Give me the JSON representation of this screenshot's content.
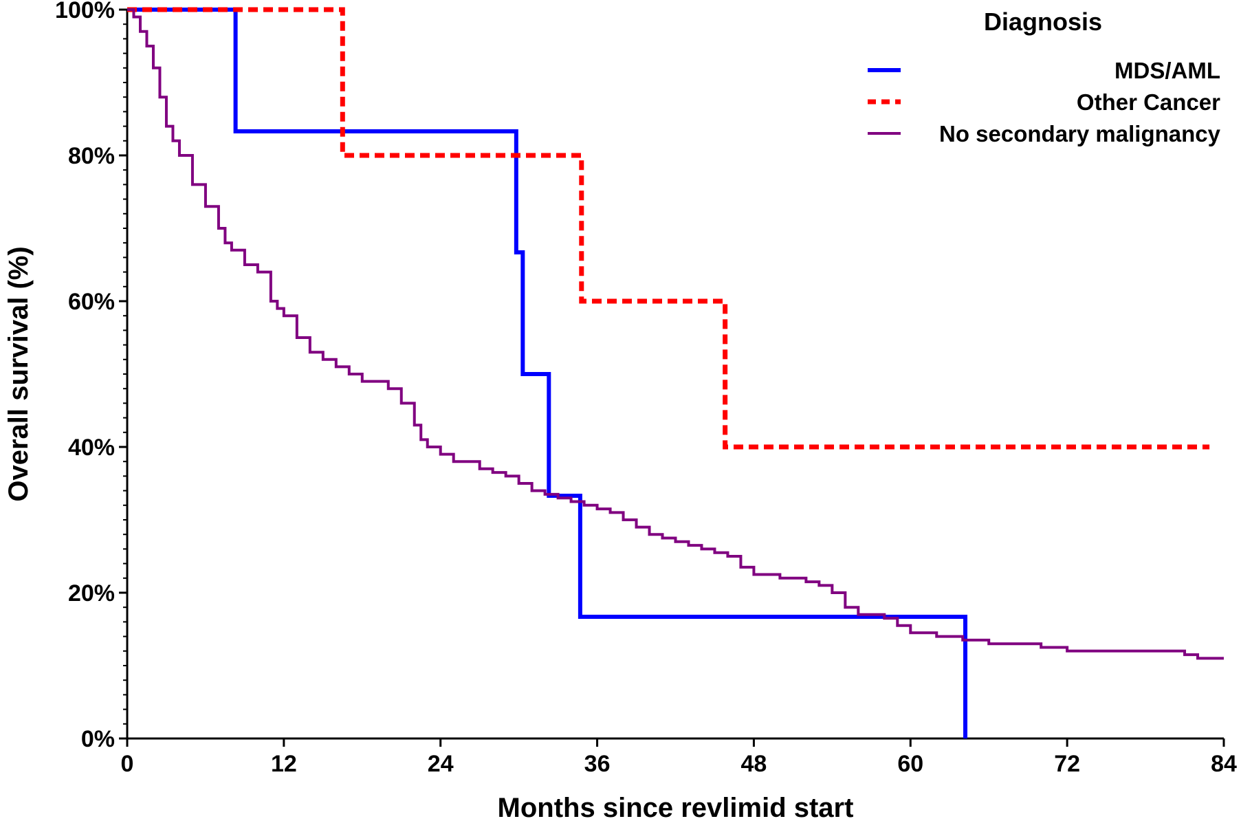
{
  "chart_data": {
    "type": "line",
    "title": "",
    "xlabel": "Months since revlimid start",
    "ylabel": "Overall survival (%)",
    "xlim": [
      0,
      84
    ],
    "ylim": [
      0,
      100
    ],
    "x_ticks": [
      0,
      12,
      24,
      36,
      48,
      60,
      72,
      84
    ],
    "y_ticks": [
      0,
      20,
      40,
      60,
      80,
      100
    ],
    "x_tick_labels": [
      "0",
      "12",
      "24",
      "36",
      "48",
      "60",
      "72",
      "84"
    ],
    "y_tick_labels": [
      "0%",
      "20%",
      "40%",
      "60%",
      "80%",
      "100%"
    ],
    "grid": false,
    "step": true,
    "legend": {
      "title": "Diagnosis",
      "position": "top-right"
    },
    "series": [
      {
        "name": "MDS/AML",
        "color": "#0000ff",
        "dash": "solid",
        "x": [
          0,
          8.3,
          29.8,
          30.3,
          32.3,
          34.7,
          64.2
        ],
        "y": [
          100,
          83.3,
          66.7,
          50,
          33.3,
          16.7,
          0
        ]
      },
      {
        "name": "Other Cancer",
        "color": "#ff0000",
        "dash": "dashed",
        "x": [
          0,
          16.5,
          34.8,
          45.8,
          82.9
        ],
        "y": [
          100,
          80,
          60,
          40,
          40
        ]
      },
      {
        "name": "No secondary malignancy",
        "color": "#800080",
        "dash": "solid",
        "x": [
          0,
          0.5,
          1,
          1.5,
          2,
          2.5,
          3,
          3.5,
          4,
          5,
          6,
          7,
          7.5,
          8,
          9,
          10,
          11,
          11.5,
          12,
          13,
          14,
          15,
          16,
          17,
          18,
          19,
          20,
          21,
          22,
          22.5,
          23,
          24,
          25,
          26,
          27,
          28,
          29,
          30,
          31,
          32,
          33,
          34,
          35,
          36,
          37,
          38,
          39,
          40,
          41,
          42,
          43,
          44,
          45,
          46,
          47,
          48,
          50,
          52,
          53,
          54,
          55,
          56,
          58,
          59,
          60,
          62,
          64,
          66,
          68,
          70,
          72,
          75,
          78,
          81,
          82,
          84
        ],
        "y": [
          100,
          99,
          97,
          95,
          92,
          88,
          84,
          82,
          80,
          76,
          73,
          70,
          68,
          67,
          65,
          64,
          60,
          59,
          58,
          55,
          53,
          52,
          51,
          50,
          49,
          49,
          48,
          46,
          43,
          41,
          40,
          39,
          38,
          38,
          37,
          36.5,
          36,
          35,
          34,
          33.5,
          33,
          32.5,
          32,
          31.5,
          31,
          30,
          29,
          28,
          27.5,
          27,
          26.5,
          26,
          25.5,
          25,
          23.5,
          22.5,
          22,
          21.5,
          21,
          20,
          18,
          17,
          16.5,
          15.5,
          14.5,
          14,
          13.5,
          13,
          13,
          12.5,
          12,
          12,
          12,
          11.5,
          11,
          11
        ]
      }
    ]
  }
}
